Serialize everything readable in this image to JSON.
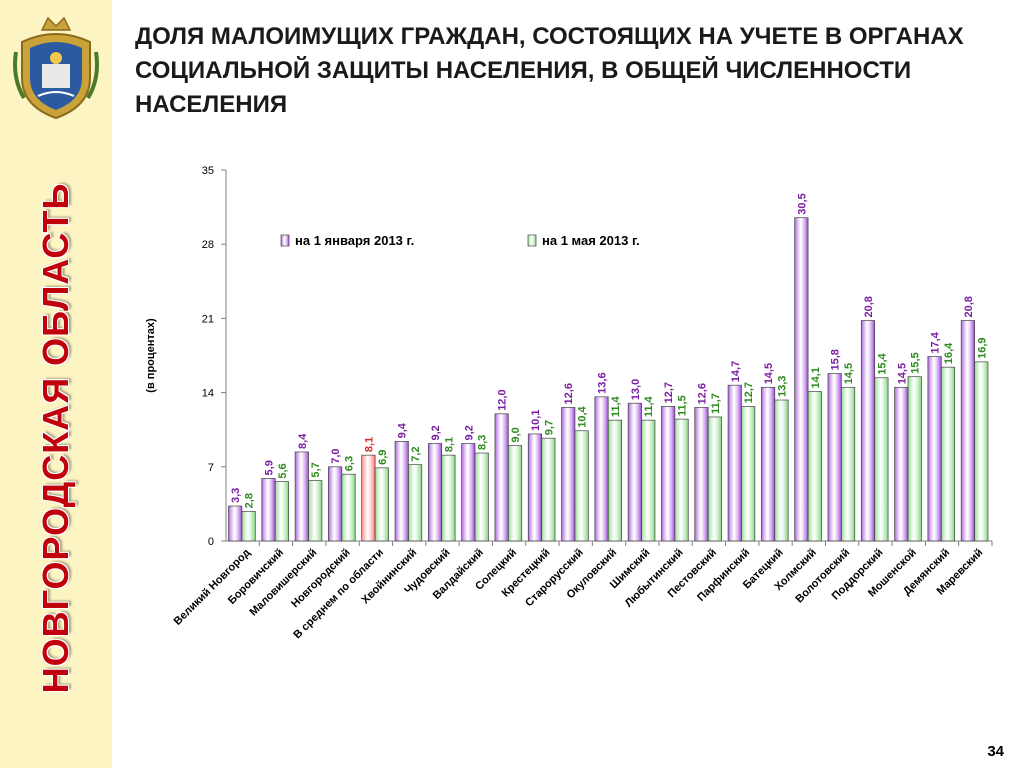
{
  "sidebar": {
    "text": "НОВГОРОДСКАЯ ОБЛАСТЬ"
  },
  "title": "ДОЛЯ МАЛОИМУЩИХ ГРАЖДАН, СОСТОЯЩИХ НА УЧЕТЕ В ОРГАНАХ СОЦИАЛЬНОЙ ЗАЩИТЫ НАСЕЛЕНИЯ, В ОБЩЕЙ ЧИСЛЕННОСТИ НАСЕЛЕНИЯ",
  "page_number": "34",
  "colors": {
    "series1": "#9b44d8",
    "series1_value": "#7b1fa2",
    "series2": "#7fd67a",
    "series2_value": "#2e8b1f",
    "average": "#ff6f73",
    "sidebar_text": "#c0000a",
    "sidebar_bg": "#fdf4c3"
  },
  "chart_data": {
    "type": "bar",
    "title": "",
    "ylabel": "(в процентах)",
    "xlabel": "",
    "ylim": [
      0,
      35
    ],
    "yticks": [
      "0",
      "7",
      "14",
      "21",
      "28",
      "35"
    ],
    "ytick_values": [
      0,
      7,
      14,
      21,
      28,
      35
    ],
    "legend_position": "top",
    "grid": false,
    "categories": [
      "Великий Новгород",
      "Боровичский",
      "Маловишерский",
      "Новгородский",
      "В среднем по области",
      "Хвойнинский",
      "Чудовский",
      "Валдайский",
      "Солецкий",
      "Крестецкий",
      "Старорусский",
      "Окуловский",
      "Шимский",
      "Любытинский",
      "Пестовский",
      "Парфинский",
      "Батецкий",
      "Холмский",
      "Волотовский",
      "Поддорский",
      "Мошенской",
      "Демянский",
      "Маревский"
    ],
    "highlight_category": "В среднем по области",
    "series": [
      {
        "name": "на 1 января 2013 г.",
        "values": [
          3.3,
          5.9,
          8.4,
          7.0,
          8.1,
          9.4,
          9.2,
          9.2,
          12.0,
          10.1,
          12.6,
          13.6,
          13.0,
          12.7,
          12.6,
          14.7,
          14.5,
          30.5,
          15.8,
          20.8,
          14.5,
          17.4,
          20.8
        ],
        "labels": [
          "3,3",
          "5,9",
          "8,4",
          "7,0",
          "8,1",
          "9,4",
          "9,2",
          "9,2",
          "12,0",
          "10,1",
          "12,6",
          "13,6",
          "13,0",
          "12,7",
          "12,6",
          "14,7",
          "14,5",
          "30,5",
          "15,8",
          "20,8",
          "14,5",
          "17,4",
          "20,8"
        ]
      },
      {
        "name": "на 1 мая 2013 г.",
        "values": [
          2.8,
          5.6,
          5.7,
          6.3,
          6.9,
          7.2,
          8.1,
          8.3,
          9.0,
          9.7,
          10.4,
          11.4,
          11.4,
          11.5,
          11.7,
          12.7,
          13.3,
          14.1,
          14.5,
          15.4,
          15.5,
          16.4,
          16.9
        ],
        "labels": [
          "2,8",
          "5,6",
          "5,7",
          "6,3",
          "6,9",
          "7,2",
          "8,1",
          "8,3",
          "9,0",
          "9,7",
          "10,4",
          "11,4",
          "11,4",
          "11,5",
          "11,7",
          "12,7",
          "13,3",
          "14,1",
          "14,5",
          "15,4",
          "15,5",
          "16,4",
          "16,9"
        ]
      }
    ]
  }
}
